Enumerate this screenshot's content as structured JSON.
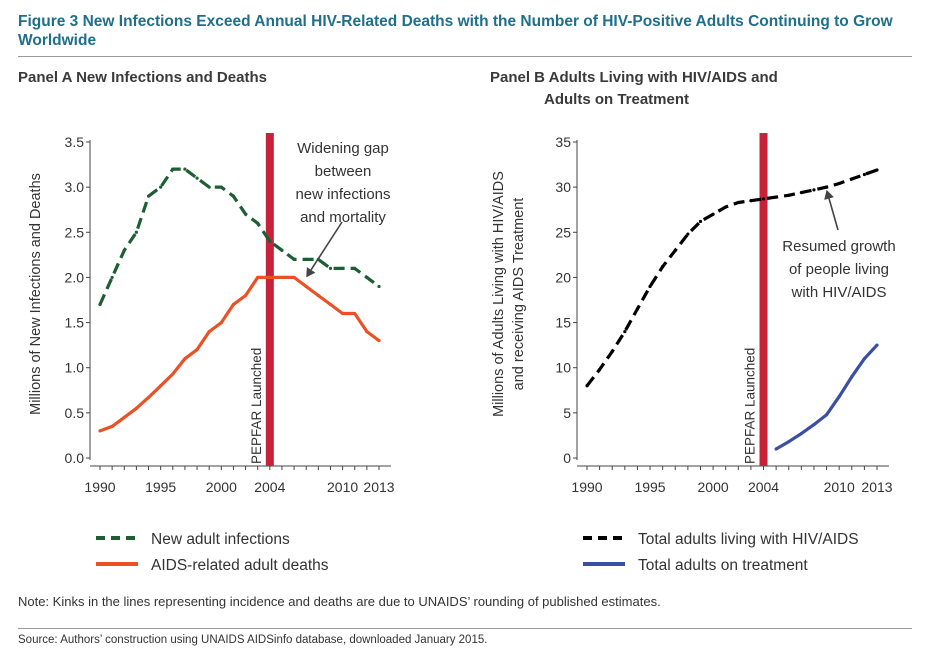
{
  "figure": {
    "title": "Figure 3  New Infections Exceed Annual HIV-Related Deaths with the Number of HIV-Positive Adults Continuing to Grow Worldwide",
    "note": "Note: Kinks in the lines representing incidence and deaths are due to UNAIDS’ rounding of published estimates.",
    "source": "Source: Authors’ construction using UNAIDS AIDSinfo database, downloaded January 2015.",
    "colors": {
      "title": "#1f6f8b",
      "pepfar": "#c8213a",
      "infections": "#1e5e33",
      "deaths": "#ea5125",
      "total": "#000000",
      "treatment": "#3a4fa3"
    }
  },
  "chart_data": [
    {
      "type": "line",
      "title": "Panel A  New Infections and Deaths",
      "ylabel": "Millions of New Infections and Deaths",
      "xlabel": "",
      "xlim": [
        1990,
        2013
      ],
      "ylim": [
        0,
        3.5
      ],
      "xticks": [
        1990,
        1995,
        2000,
        2004,
        2010,
        2013
      ],
      "yticks": [
        0,
        0.5,
        1.0,
        1.5,
        2.0,
        2.5,
        3.0,
        3.5
      ],
      "ytick_labels": [
        "0.0",
        "0.5",
        "1.0",
        "1.5",
        "2.0",
        "2.5",
        "3.0",
        "3.5"
      ],
      "vline": {
        "x": 2004,
        "label": "PEPFAR Launched"
      },
      "annotation": {
        "lines": [
          "Widening gap",
          "between",
          "new infections",
          "and mortality"
        ],
        "arrow_to": [
          2007,
          2.0
        ]
      },
      "series": [
        {
          "name": "New adult infections",
          "style": "dashed",
          "color": "#1e5e33",
          "x": [
            1990,
            1991,
            1992,
            1993,
            1994,
            1995,
            1996,
            1997,
            1998,
            1999,
            2000,
            2001,
            2002,
            2003,
            2004,
            2005,
            2006,
            2007,
            2008,
            2009,
            2010,
            2011,
            2012,
            2013
          ],
          "values": [
            1.7,
            2.0,
            2.3,
            2.5,
            2.9,
            3.0,
            3.2,
            3.2,
            3.1,
            3.0,
            3.0,
            2.9,
            2.7,
            2.6,
            2.4,
            2.3,
            2.2,
            2.2,
            2.2,
            2.1,
            2.1,
            2.1,
            2.0,
            1.9
          ]
        },
        {
          "name": "AIDS-related adult deaths",
          "style": "solid",
          "color": "#ea5125",
          "x": [
            1990,
            1991,
            1992,
            1993,
            1994,
            1995,
            1996,
            1997,
            1998,
            1999,
            2000,
            2001,
            2002,
            2003,
            2004,
            2005,
            2006,
            2007,
            2008,
            2009,
            2010,
            2011,
            2012,
            2013
          ],
          "values": [
            0.3,
            0.35,
            0.45,
            0.55,
            0.67,
            0.8,
            0.93,
            1.1,
            1.2,
            1.4,
            1.5,
            1.7,
            1.8,
            2.0,
            2.0,
            2.0,
            2.0,
            1.9,
            1.8,
            1.7,
            1.6,
            1.6,
            1.4,
            1.3
          ]
        }
      ]
    },
    {
      "type": "line",
      "title_lines": [
        "Panel B  Adults Living with HIV/AIDS and",
        "Adults on Treatment"
      ],
      "ylabel_lines": [
        "Millions of Adults Living with HIV/AIDS",
        "and receiving AIDS Treatment"
      ],
      "xlabel": "",
      "xlim": [
        1990,
        2013
      ],
      "ylim": [
        0,
        35
      ],
      "xticks": [
        1990,
        1995,
        2000,
        2004,
        2010,
        2013
      ],
      "yticks": [
        0,
        5,
        10,
        15,
        20,
        25,
        30,
        35
      ],
      "ytick_labels": [
        "0",
        "5",
        "10",
        "15",
        "20",
        "25",
        "30",
        "35"
      ],
      "vline": {
        "x": 2004,
        "label": "PEPFAR Launched"
      },
      "annotation": {
        "lines": [
          "Resumed growth",
          "of people living",
          "with HIV/AIDS"
        ],
        "arrow_to": [
          2009,
          29.7
        ]
      },
      "series": [
        {
          "name": "Total adults living with HIV/AIDS",
          "style": "dashed",
          "color": "#000000",
          "x": [
            1990,
            1991,
            1992,
            1993,
            1994,
            1995,
            1996,
            1997,
            1998,
            1999,
            2000,
            2001,
            2002,
            2003,
            2004,
            2005,
            2006,
            2007,
            2008,
            2009,
            2010,
            2011,
            2012,
            2013
          ],
          "values": [
            8.0,
            9.8,
            11.8,
            14.0,
            16.5,
            19.0,
            21.2,
            23.0,
            24.8,
            26.2,
            27.0,
            27.8,
            28.3,
            28.5,
            28.7,
            28.9,
            29.1,
            29.4,
            29.7,
            30.0,
            30.4,
            30.9,
            31.4,
            31.9
          ]
        },
        {
          "name": "Total adults on treatment",
          "style": "solid",
          "color": "#3a4fa3",
          "x": [
            2005,
            2006,
            2007,
            2008,
            2009,
            2010,
            2011,
            2012,
            2013
          ],
          "values": [
            1.0,
            1.8,
            2.7,
            3.7,
            4.8,
            6.8,
            9.0,
            11.0,
            12.5
          ]
        }
      ]
    }
  ]
}
